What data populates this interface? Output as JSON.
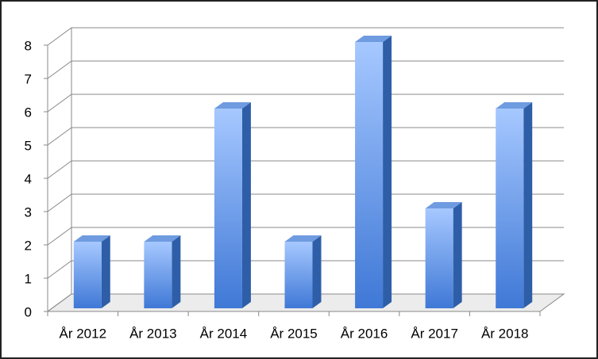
{
  "chart_data": {
    "type": "bar3d",
    "categories": [
      "År 2012",
      "År 2013",
      "År 2014",
      "År 2015",
      "År 2016",
      "År 2017",
      "År 2018"
    ],
    "values": [
      2,
      2,
      6,
      2,
      8,
      3,
      6
    ],
    "color": "#4a86e0",
    "ylim": [
      0,
      8
    ],
    "yticks": [
      0,
      1,
      2,
      3,
      4,
      5,
      6,
      7,
      8
    ],
    "grid": true
  }
}
